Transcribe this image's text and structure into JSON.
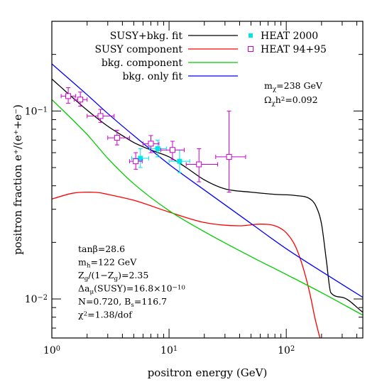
{
  "chart_data": {
    "type": "line",
    "xlabel": "positron energy  (GeV)",
    "ylabel": "positron fraction e⁺/(e⁺+e⁻)",
    "xscale": "log",
    "yscale": "log",
    "xlim": [
      1,
      450
    ],
    "ylim": [
      0.0062,
      0.3
    ],
    "x_ticks": [
      {
        "value": 1,
        "base": "10",
        "exp": "0"
      },
      {
        "value": 10,
        "base": "10",
        "exp": "1"
      },
      {
        "value": 100,
        "base": "10",
        "exp": "2"
      }
    ],
    "y_ticks": [
      {
        "value": 0.01,
        "base": "10",
        "exp": "−2"
      },
      {
        "value": 0.1,
        "base": "10",
        "exp": "−1"
      }
    ],
    "grid": false,
    "legend_position": "top",
    "series": [
      {
        "name": "SUSY+bkg. fit",
        "color": "#000000",
        "x": [
          1,
          1.5,
          2,
          3,
          4,
          5,
          7,
          10,
          14,
          20,
          30,
          50,
          80,
          120,
          160,
          180,
          200,
          220,
          240,
          300,
          450
        ],
        "y": [
          0.148,
          0.118,
          0.101,
          0.083,
          0.074,
          0.068,
          0.062,
          0.057,
          0.05,
          0.043,
          0.0385,
          0.037,
          0.036,
          0.0355,
          0.034,
          0.031,
          0.025,
          0.016,
          0.0108,
          0.0102,
          0.0085
        ]
      },
      {
        "name": "SUSY component",
        "color": "#ff0000",
        "x": [
          1,
          1.5,
          2,
          2.5,
          3,
          5,
          10,
          20,
          40,
          60,
          80,
          100,
          120,
          140,
          160,
          175,
          190,
          200
        ],
        "y": [
          0.034,
          0.0365,
          0.037,
          0.0368,
          0.036,
          0.0335,
          0.029,
          0.0255,
          0.0245,
          0.025,
          0.0245,
          0.0225,
          0.019,
          0.0145,
          0.0105,
          0.008,
          0.0065,
          0.0058
        ]
      },
      {
        "name": "bkg. component",
        "color": "#00cc00",
        "x": [
          1,
          2,
          3,
          5,
          10,
          20,
          50,
          100,
          200,
          450
        ],
        "y": [
          0.115,
          0.075,
          0.056,
          0.041,
          0.0295,
          0.0228,
          0.0168,
          0.0135,
          0.0108,
          0.0082
        ]
      },
      {
        "name": "bkg. only fit",
        "color": "#0000ff",
        "x": [
          1,
          2,
          3,
          5,
          10,
          20,
          50,
          100,
          200,
          450
        ],
        "y": [
          0.178,
          0.122,
          0.097,
          0.074,
          0.052,
          0.038,
          0.0252,
          0.0185,
          0.014,
          0.0102
        ]
      },
      {
        "name": "HEAT 2000",
        "color": "#00e5e5",
        "marker": "filled-square",
        "points": [
          {
            "x": 5.7,
            "y": 0.056,
            "xerr": [
              4.8,
              6.7
            ],
            "yerr": [
              0.05,
              0.063
            ]
          },
          {
            "x": 8.0,
            "y": 0.063,
            "xerr": [
              6.8,
              9.5
            ],
            "yerr": [
              0.057,
              0.07
            ]
          },
          {
            "x": 12.3,
            "y": 0.054,
            "xerr": [
              10.0,
              15.0
            ],
            "yerr": [
              0.047,
              0.062
            ]
          }
        ]
      },
      {
        "name": "HEAT 94+95",
        "color": "#cc00cc",
        "marker": "open-square",
        "points": [
          {
            "x": 1.38,
            "y": 0.12,
            "xerr": [
              1.2,
              1.6
            ],
            "yerr": [
              0.11,
              0.133
            ]
          },
          {
            "x": 1.75,
            "y": 0.115,
            "xerr": [
              1.55,
              2.0
            ],
            "yerr": [
              0.106,
              0.126
            ]
          },
          {
            "x": 2.6,
            "y": 0.094,
            "xerr": [
              2.0,
              3.4
            ],
            "yerr": [
              0.087,
              0.102
            ]
          },
          {
            "x": 3.6,
            "y": 0.072,
            "xerr": [
              3.0,
              4.6
            ],
            "yerr": [
              0.066,
              0.079
            ]
          },
          {
            "x": 5.2,
            "y": 0.054,
            "xerr": [
              4.6,
              5.9
            ],
            "yerr": [
              0.049,
              0.06
            ]
          },
          {
            "x": 7.0,
            "y": 0.067,
            "xerr": [
              6.0,
              8.2
            ],
            "yerr": [
              0.06,
              0.074
            ]
          },
          {
            "x": 10.7,
            "y": 0.062,
            "xerr": [
              8.5,
              13.5
            ],
            "yerr": [
              0.055,
              0.069
            ]
          },
          {
            "x": 18.0,
            "y": 0.052,
            "xerr": [
              14.0,
              26.0
            ],
            "yerr": [
              0.042,
              0.063
            ]
          },
          {
            "x": 32.5,
            "y": 0.057,
            "xerr": [
              25.0,
              45.0
            ],
            "yerr": [
              0.037,
              0.1
            ]
          }
        ]
      }
    ],
    "annotations": {
      "model_params": {
        "m_chi": "m<sub>χ</sub>=238 GeV",
        "omega": "Ω<sub>χ</sub>h<sup>2</sup>=0.092"
      },
      "susy_params": {
        "tanbeta": "tanβ=28.6",
        "mh": "m<sub>h</sub>=122 GeV",
        "zg": "Z<sub>g</sub>/(1−Z<sub>g</sub>)=2.35",
        "damu": "Δa<sub>μ</sub>(SUSY)=16.8×10<sup>−10</sup>",
        "nbs": "N=0.720, B<sub>s</sub>=116.7",
        "chi2": "χ<sup>2</sup>=1.38/dof"
      }
    }
  }
}
